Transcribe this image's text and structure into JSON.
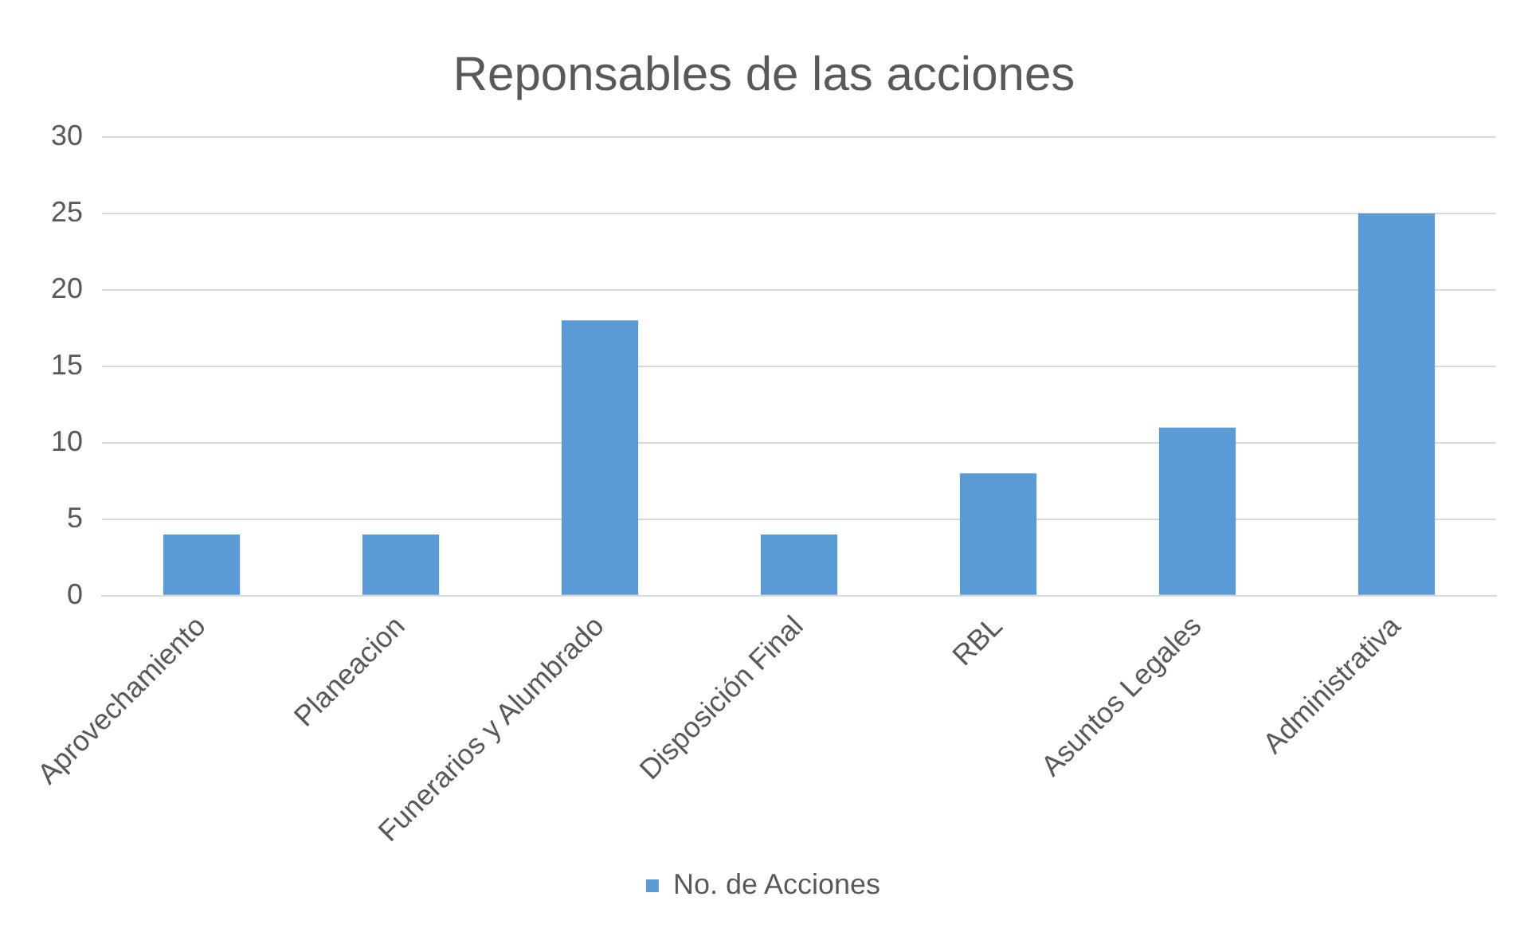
{
  "chart_data": {
    "type": "bar",
    "title": "Reponsables de las acciones",
    "categories": [
      "Aprovechamiento",
      "Planeacion",
      "Funerarios y Alumbrado",
      "Disposición Final",
      "RBL",
      "Asuntos Legales",
      "Administrativa"
    ],
    "series": [
      {
        "name": "No. de Acciones",
        "color": "#5b9bd5",
        "values": [
          4,
          4,
          18,
          4,
          8,
          11,
          25
        ]
      }
    ],
    "ylim": [
      0,
      30
    ],
    "yticks": [
      0,
      5,
      10,
      15,
      20,
      25,
      30
    ],
    "grid": "y",
    "legend": "bottom"
  }
}
